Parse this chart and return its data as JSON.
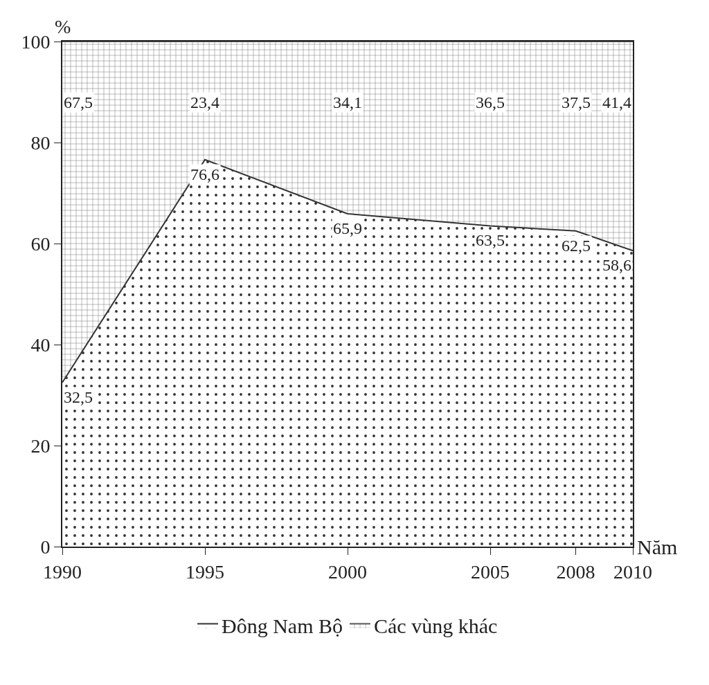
{
  "chart_data": {
    "type": "area",
    "stacked": true,
    "xlabel": "Năm",
    "ylabel": "%",
    "x": [
      1990,
      1995,
      2000,
      2005,
      2008,
      2010
    ],
    "series": [
      {
        "name": "Đông Nam Bộ",
        "color": "#333333",
        "values": [
          32.5,
          76.6,
          65.9,
          63.5,
          62.5,
          58.6
        ],
        "value_labels": [
          "32,5",
          "76,6",
          "65,9",
          "63,5",
          "62,5",
          "58,6"
        ]
      },
      {
        "name": "Các vùng khác",
        "color": "#555555",
        "values": [
          67.5,
          23.4,
          34.1,
          36.5,
          37.5,
          41.4
        ],
        "value_labels": [
          "67,5",
          "23,4",
          "34,1",
          "36,5",
          "37,5",
          "41,4"
        ]
      }
    ],
    "xlim": [
      1990,
      2010
    ],
    "xticks": [
      1990,
      1995,
      2000,
      2005,
      2008,
      2010
    ],
    "ylim": [
      0,
      100
    ],
    "yticks": [
      0,
      20,
      40,
      60,
      80,
      100
    ],
    "legend": "bottom",
    "marker": "none",
    "line_style": "solid"
  }
}
